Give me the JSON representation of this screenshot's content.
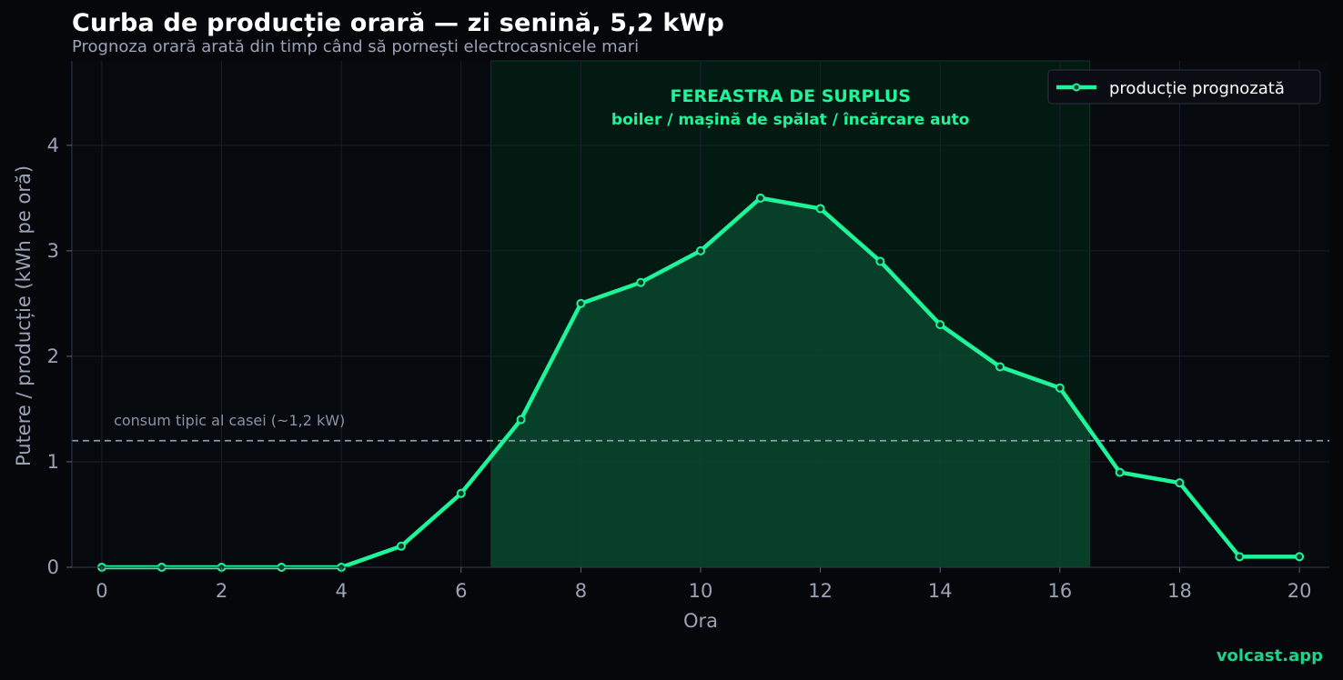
{
  "chart_data": {
    "type": "line",
    "title": "Curba de producție orară — zi senină, 5,2 kWp",
    "subtitle": "Prognoza orară arată din timp când să pornești electrocasnicele mari",
    "xlabel": "Ora",
    "ylabel": "Putere / producție (kWh pe oră)",
    "xlim": [
      -0.5,
      20.5
    ],
    "ylim": [
      0,
      4.8
    ],
    "xticks": [
      0,
      2,
      4,
      6,
      8,
      10,
      12,
      14,
      16,
      18,
      20
    ],
    "yticks": [
      0,
      1,
      2,
      3,
      4
    ],
    "grid": true,
    "legend_position": "top-right",
    "series": [
      {
        "name": "producție prognozată",
        "color": "#1ef59a",
        "x": [
          0,
          1,
          2,
          3,
          4,
          5,
          6,
          7,
          8,
          9,
          10,
          11,
          12,
          13,
          14,
          15,
          16,
          17,
          18,
          19,
          20
        ],
        "values": [
          0,
          0,
          0,
          0,
          0,
          0.2,
          0.7,
          1.4,
          2.5,
          2.7,
          3.0,
          3.5,
          3.4,
          2.9,
          2.3,
          1.9,
          1.7,
          0.9,
          0.8,
          0.1,
          0.1
        ]
      }
    ],
    "reference_line": {
      "y": 1.2,
      "label": "consum tipic al casei (~1,2 kW)",
      "color": "#8a9bb0"
    },
    "highlight_window": {
      "x_start": 6.5,
      "x_end": 16.5,
      "label_line1": "FEREASTRA DE SURPLUS",
      "label_line2": "boiler / mașină de spălat / încărcare auto",
      "color": "#1ef59a"
    }
  },
  "footer": {
    "brand": "volcast.app"
  }
}
